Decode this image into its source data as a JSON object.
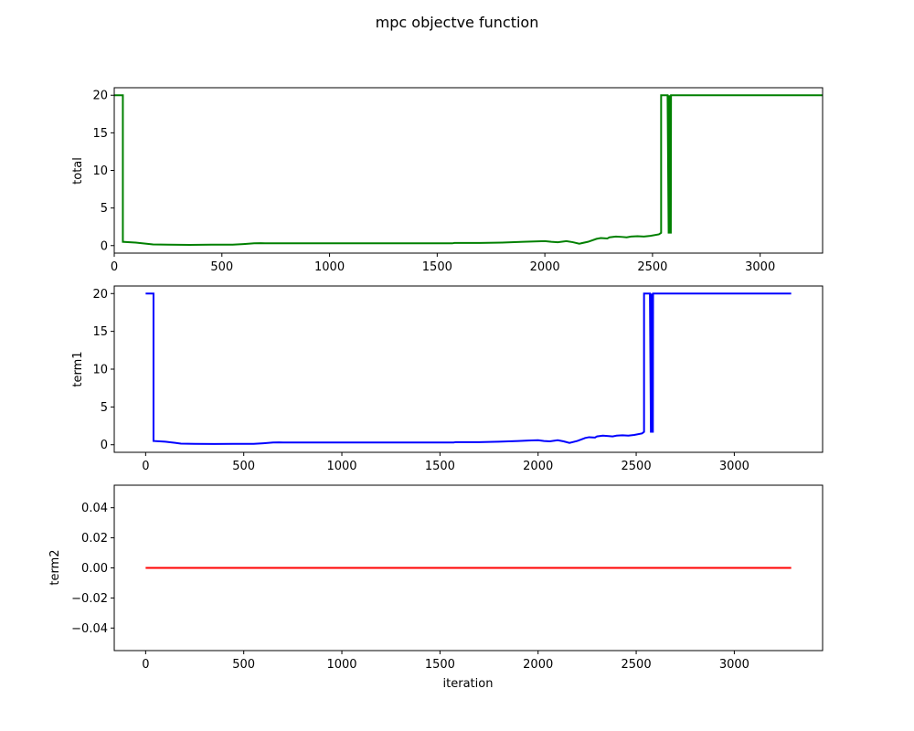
{
  "title": "mpc objectve function",
  "chart_data": [
    {
      "type": "line",
      "ylabel": "total",
      "xlabel": "",
      "color": "#008000",
      "xlim": [
        0,
        3290
      ],
      "ylim": [
        -1,
        21
      ],
      "xticks": [
        0,
        500,
        1000,
        1500,
        2000,
        2500,
        3000
      ],
      "yticks": [
        0,
        5,
        10,
        15,
        20
      ],
      "xtick_labels": [
        "0",
        "500",
        "1000",
        "1500",
        "2000",
        "2500",
        "3000"
      ],
      "ytick_labels": [
        "0",
        "5",
        "10",
        "15",
        "20"
      ],
      "grid": false,
      "series": [
        {
          "x": [
            0,
            40,
            40,
            100,
            150,
            180,
            250,
            350,
            450,
            550,
            600,
            650,
            680,
            700,
            800,
            1000,
            1200,
            1400,
            1570,
            1580,
            1700,
            1800,
            1900,
            1950,
            2000,
            2030,
            2060,
            2100,
            2130,
            2160,
            2200,
            2240,
            2260,
            2290,
            2300,
            2330,
            2360,
            2380,
            2400,
            2430,
            2460,
            2490,
            2530,
            2540,
            2540,
            2570,
            2575,
            2576,
            2580,
            2581,
            2585,
            2586,
            2590,
            3290
          ],
          "y": [
            20,
            20,
            0.5,
            0.4,
            0.25,
            0.15,
            0.12,
            0.1,
            0.12,
            0.12,
            0.2,
            0.3,
            0.32,
            0.3,
            0.3,
            0.3,
            0.3,
            0.3,
            0.3,
            0.35,
            0.35,
            0.4,
            0.5,
            0.55,
            0.6,
            0.5,
            0.45,
            0.6,
            0.45,
            0.25,
            0.5,
            0.9,
            1.0,
            0.95,
            1.1,
            1.2,
            1.15,
            1.1,
            1.2,
            1.25,
            1.2,
            1.3,
            1.5,
            1.7,
            20,
            20,
            1.6,
            20,
            1.6,
            20,
            1.6,
            20,
            20,
            20
          ]
        }
      ]
    },
    {
      "type": "line",
      "ylabel": "term1",
      "xlabel": "",
      "color": "#0000ff",
      "xlim": [
        -160,
        3450
      ],
      "ylim": [
        -1,
        21
      ],
      "xticks": [
        0,
        500,
        1000,
        1500,
        2000,
        2500,
        3000
      ],
      "yticks": [
        0,
        5,
        10,
        15,
        20
      ],
      "xtick_labels": [
        "0",
        "500",
        "1000",
        "1500",
        "2000",
        "2500",
        "3000"
      ],
      "ytick_labels": [
        "0",
        "5",
        "10",
        "15",
        "20"
      ],
      "grid": false,
      "series": [
        {
          "x": [
            0,
            40,
            40,
            100,
            150,
            180,
            250,
            350,
            450,
            550,
            600,
            650,
            680,
            700,
            800,
            1000,
            1200,
            1400,
            1570,
            1580,
            1700,
            1800,
            1900,
            1950,
            2000,
            2030,
            2060,
            2100,
            2130,
            2160,
            2200,
            2240,
            2260,
            2290,
            2300,
            2330,
            2360,
            2380,
            2400,
            2430,
            2460,
            2490,
            2530,
            2540,
            2540,
            2570,
            2575,
            2576,
            2580,
            2581,
            2585,
            2586,
            2590,
            3290
          ],
          "y": [
            20,
            20,
            0.5,
            0.4,
            0.25,
            0.15,
            0.12,
            0.1,
            0.12,
            0.12,
            0.2,
            0.3,
            0.32,
            0.3,
            0.3,
            0.3,
            0.3,
            0.3,
            0.3,
            0.35,
            0.35,
            0.4,
            0.5,
            0.55,
            0.6,
            0.5,
            0.45,
            0.6,
            0.45,
            0.25,
            0.5,
            0.9,
            1.0,
            0.95,
            1.1,
            1.2,
            1.15,
            1.1,
            1.2,
            1.25,
            1.2,
            1.3,
            1.5,
            1.7,
            20,
            20,
            1.6,
            20,
            1.6,
            20,
            1.6,
            20,
            20,
            20
          ]
        }
      ]
    },
    {
      "type": "line",
      "ylabel": "term2",
      "xlabel": "iteration",
      "color": "#ff0000",
      "xlim": [
        -160,
        3450
      ],
      "ylim": [
        -0.055,
        0.055
      ],
      "xticks": [
        0,
        500,
        1000,
        1500,
        2000,
        2500,
        3000
      ],
      "yticks": [
        0.04,
        0.02,
        0.0,
        -0.02,
        -0.04
      ],
      "xtick_labels": [
        "0",
        "500",
        "1000",
        "1500",
        "2000",
        "2500",
        "3000"
      ],
      "ytick_labels": [
        "0.04",
        "0.02",
        "0.00",
        "−0.02",
        "−0.04"
      ],
      "grid": false,
      "series": [
        {
          "x": [
            0,
            3290
          ],
          "y": [
            0,
            0
          ]
        }
      ]
    }
  ]
}
